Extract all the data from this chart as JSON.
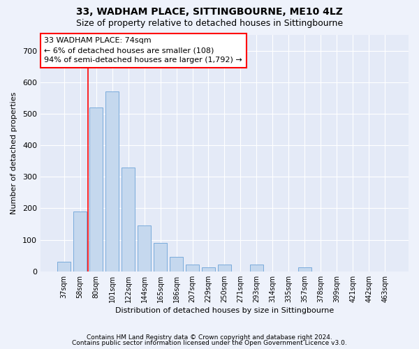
{
  "title1": "33, WADHAM PLACE, SITTINGBOURNE, ME10 4LZ",
  "title2": "Size of property relative to detached houses in Sittingbourne",
  "xlabel": "Distribution of detached houses by size in Sittingbourne",
  "ylabel": "Number of detached properties",
  "categories": [
    "37sqm",
    "58sqm",
    "80sqm",
    "101sqm",
    "122sqm",
    "144sqm",
    "165sqm",
    "186sqm",
    "207sqm",
    "229sqm",
    "250sqm",
    "271sqm",
    "293sqm",
    "314sqm",
    "335sqm",
    "357sqm",
    "378sqm",
    "399sqm",
    "421sqm",
    "442sqm",
    "463sqm"
  ],
  "values": [
    30,
    190,
    520,
    570,
    330,
    145,
    90,
    45,
    22,
    12,
    22,
    0,
    22,
    0,
    0,
    12,
    0,
    0,
    0,
    0,
    0
  ],
  "bar_color": "#c5d8ee",
  "bar_edge_color": "#7aabdb",
  "annotation_box_text": "33 WADHAM PLACE: 74sqm\n← 6% of detached houses are smaller (108)\n94% of semi-detached houses are larger (1,792) →",
  "red_line_x": 1.5,
  "footer1": "Contains HM Land Registry data © Crown copyright and database right 2024.",
  "footer2": "Contains public sector information licensed under the Open Government Licence v3.0.",
  "bg_color": "#eef2fb",
  "plot_bg_color": "#e4eaf7",
  "grid_color": "#ffffff",
  "ylim": [
    0,
    750
  ],
  "yticks": [
    0,
    100,
    200,
    300,
    400,
    500,
    600,
    700
  ],
  "title1_fontsize": 10,
  "title2_fontsize": 9,
  "xlabel_fontsize": 8,
  "ylabel_fontsize": 8,
  "tick_fontsize": 8,
  "footer_fontsize": 6.5,
  "ann_fontsize": 8
}
